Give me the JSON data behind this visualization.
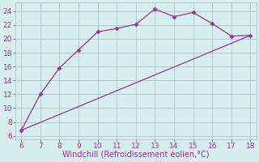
{
  "line1_x": [
    6,
    7,
    8,
    9,
    10,
    11,
    12,
    13,
    14,
    15,
    16,
    17,
    18
  ],
  "line1_y": [
    6.8,
    12.0,
    15.8,
    18.4,
    21.0,
    21.5,
    22.1,
    24.3,
    23.2,
    23.8,
    22.2,
    20.4,
    20.5
  ],
  "line2_x": [
    6,
    18
  ],
  "line2_y": [
    6.8,
    20.5
  ],
  "line_color": "#993399",
  "marker": "D",
  "markersize": 2.5,
  "xlabel": "Windchill (Refroidissement éolien,°C)",
  "xlim": [
    5.7,
    18.3
  ],
  "ylim": [
    5.5,
    25.2
  ],
  "xticks": [
    6,
    7,
    8,
    9,
    10,
    11,
    12,
    13,
    14,
    15,
    16,
    17,
    18
  ],
  "yticks": [
    6,
    8,
    10,
    12,
    14,
    16,
    18,
    20,
    22,
    24
  ],
  "bg_color": "#d6eeee",
  "grid_color": "#b0b8cc",
  "tick_label_fontsize": 6.5,
  "xlabel_fontsize": 7.0
}
